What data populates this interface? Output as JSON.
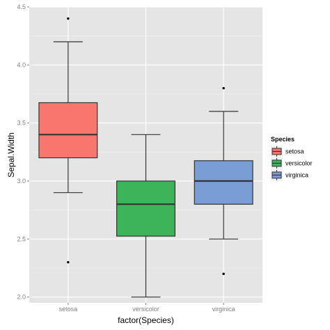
{
  "chart_data": {
    "type": "boxplot",
    "xlabel": "factor(Species)",
    "ylabel": "Sepal.Width",
    "ylim": [
      1.95,
      4.5
    ],
    "y_ticks": [
      "2.0",
      "2.5",
      "3.0",
      "3.5",
      "4.0",
      "4.5"
    ],
    "categories": [
      "setosa",
      "versicolor",
      "virginica"
    ],
    "grid": true,
    "legend": {
      "title": "Species",
      "position": "right",
      "entries": [
        "setosa",
        "versicolor",
        "virginica"
      ]
    },
    "series": [
      {
        "name": "setosa",
        "color": "#F8766D",
        "min": 2.9,
        "q1": 3.2,
        "median": 3.4,
        "q3": 3.675,
        "max": 4.2,
        "outliers": [
          4.4,
          2.3
        ]
      },
      {
        "name": "versicolor",
        "color": "#3DB45A",
        "min": 2.0,
        "q1": 2.525,
        "median": 2.8,
        "q3": 3.0,
        "max": 3.4,
        "outliers": []
      },
      {
        "name": "virginica",
        "color": "#7B9DD5",
        "min": 2.5,
        "q1": 2.8,
        "median": 3.0,
        "q3": 3.175,
        "max": 3.6,
        "outliers": [
          3.8,
          2.2
        ]
      }
    ],
    "colors": {
      "panel": "#E5E5E5",
      "grid": "#FFFFFF",
      "line": "#333333",
      "tick_text": "#7F7F7F"
    }
  }
}
